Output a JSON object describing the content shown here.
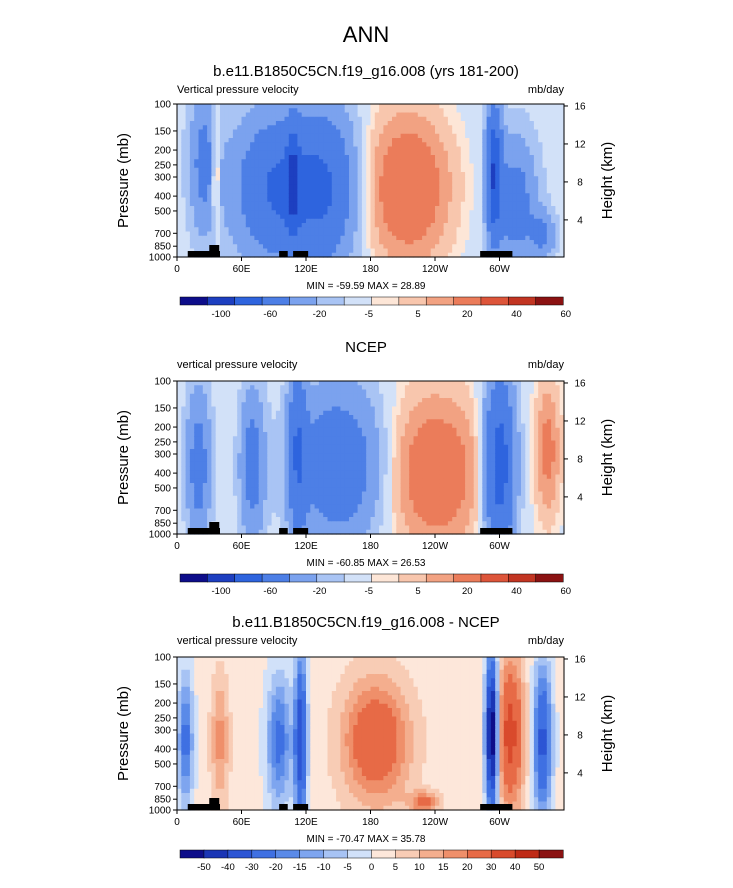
{
  "figure": {
    "title": "ANN"
  },
  "chart_data": [
    {
      "type": "heatmap",
      "title": "b.e11.B1850C5CN.f19_g16.008 (yrs 181-200)",
      "left_label": "Vertical pressure velocity",
      "right_label": "mb/day",
      "ylabel": "Pressure (mb)",
      "right_ylabel": "Height (km)",
      "xtick_labels": [
        "0",
        "60E",
        "120E",
        "180",
        "120W",
        "60W"
      ],
      "ytick_labels": [
        "100",
        "150",
        "200",
        "250",
        "300",
        "400",
        "500",
        "700",
        "850",
        "1000"
      ],
      "height_tick_labels": [
        "16",
        "12",
        "8",
        "4"
      ],
      "stats": "MIN = -59.59  MAX = 28.89",
      "colorbar_labels": [
        "-100",
        "-60",
        "-20",
        "-5",
        "5",
        "20",
        "40",
        "60"
      ],
      "palette": "abs",
      "features": [
        {
          "lon": 25,
          "lev": 0.38,
          "slon": 9,
          "slev": 0.3,
          "amp": -22
        },
        {
          "lon": 36,
          "lev": 0.45,
          "slon": 3,
          "slev": 0.25,
          "amp": 18
        },
        {
          "lon": 95,
          "lev": 0.55,
          "slon": 28,
          "slev": 0.32,
          "amp": -40
        },
        {
          "lon": 140,
          "lev": 0.55,
          "slon": 20,
          "slev": 0.35,
          "amp": -30
        },
        {
          "lon": 108,
          "lev": 0.5,
          "slon": 4,
          "slev": 0.25,
          "amp": -30
        },
        {
          "lon": 215,
          "lev": 0.55,
          "slon": 28,
          "slev": 0.35,
          "amp": 22
        },
        {
          "lon": 295,
          "lev": 0.45,
          "slon": 5,
          "slev": 0.3,
          "amp": -55
        },
        {
          "lon": 315,
          "lev": 0.65,
          "slon": 13,
          "slev": 0.28,
          "amp": -25
        },
        {
          "lon": 340,
          "lev": 0.85,
          "slon": 8,
          "slev": 0.1,
          "amp": -20
        }
      ],
      "background": -3
    },
    {
      "type": "heatmap",
      "title": "NCEP",
      "left_label": "vertical pressure velocity",
      "right_label": "mb/day",
      "ylabel": "Pressure (mb)",
      "right_ylabel": "Height (km)",
      "xtick_labels": [
        "0",
        "60E",
        "120E",
        "180",
        "120W",
        "60W"
      ],
      "ytick_labels": [
        "100",
        "150",
        "200",
        "250",
        "300",
        "400",
        "500",
        "700",
        "850",
        "1000"
      ],
      "height_tick_labels": [
        "16",
        "12",
        "8",
        "4"
      ],
      "stats": "MIN = -60.85  MAX = 26.53",
      "colorbar_labels": [
        "-100",
        "-60",
        "-20",
        "-5",
        "5",
        "20",
        "40",
        "60"
      ],
      "palette": "abs",
      "features": [
        {
          "lon": 20,
          "lev": 0.55,
          "slon": 8,
          "slev": 0.35,
          "amp": -25
        },
        {
          "lon": 70,
          "lev": 0.55,
          "slon": 8,
          "slev": 0.35,
          "amp": -25
        },
        {
          "lon": 150,
          "lev": 0.55,
          "slon": 28,
          "slev": 0.35,
          "amp": -32
        },
        {
          "lon": 112,
          "lev": 0.45,
          "slon": 6,
          "slev": 0.4,
          "amp": -30
        },
        {
          "lon": 240,
          "lev": 0.6,
          "slon": 30,
          "slev": 0.35,
          "amp": 20
        },
        {
          "lon": 300,
          "lev": 0.55,
          "slon": 10,
          "slev": 0.4,
          "amp": -50
        },
        {
          "lon": 345,
          "lev": 0.45,
          "slon": 8,
          "slev": 0.3,
          "amp": 15
        }
      ],
      "background": -2
    },
    {
      "type": "heatmap",
      "title": "b.e11.B1850C5CN.f19_g16.008 - NCEP",
      "left_label": "vertical pressure velocity",
      "right_label": "mb/day",
      "ylabel": "Pressure (mb)",
      "right_ylabel": "Height (km)",
      "xtick_labels": [
        "0",
        "60E",
        "120E",
        "180",
        "120W",
        "60W"
      ],
      "ytick_labels": [
        "100",
        "150",
        "200",
        "250",
        "300",
        "400",
        "500",
        "700",
        "850",
        "1000"
      ],
      "height_tick_labels": [
        "16",
        "12",
        "8",
        "4"
      ],
      "stats": "MIN = -70.47  MAX = 35.78",
      "colorbar_labels": [
        "-50",
        "-40",
        "-30",
        "-20",
        "-15",
        "-10",
        "-5",
        "0",
        "5",
        "10",
        "15",
        "20",
        "30",
        "40",
        "50"
      ],
      "palette": "diff",
      "features": [
        {
          "lon": 8,
          "lev": 0.55,
          "slon": 5,
          "slev": 0.3,
          "amp": -25
        },
        {
          "lon": 40,
          "lev": 0.55,
          "slon": 6,
          "slev": 0.3,
          "amp": 15
        },
        {
          "lon": 95,
          "lev": 0.55,
          "slon": 8,
          "slev": 0.3,
          "amp": -25
        },
        {
          "lon": 115,
          "lev": 0.55,
          "slon": 4,
          "slev": 0.4,
          "amp": -40
        },
        {
          "lon": 185,
          "lev": 0.55,
          "slon": 22,
          "slev": 0.28,
          "amp": 28
        },
        {
          "lon": 230,
          "lev": 0.95,
          "slon": 10,
          "slev": 0.05,
          "amp": 20
        },
        {
          "lon": 293,
          "lev": 0.5,
          "slon": 4,
          "slev": 0.35,
          "amp": -65
        },
        {
          "lon": 310,
          "lev": 0.5,
          "slon": 9,
          "slev": 0.35,
          "amp": 32
        },
        {
          "lon": 340,
          "lev": 0.55,
          "slon": 6,
          "slev": 0.35,
          "amp": -35
        }
      ],
      "background": 2
    }
  ],
  "colors": {
    "abs_palette": [
      "#0d0d8a",
      "#1d3fc0",
      "#2e64de",
      "#4d7fe6",
      "#7ba2ee",
      "#a9c4f4",
      "#d2e1f8",
      "#fde6d7",
      "#f8c6ad",
      "#f2a282",
      "#eb7c5a",
      "#dd553a",
      "#c23522",
      "#8b1212"
    ],
    "diff_palette": [
      "#0d0d8a",
      "#1a35b5",
      "#2c55d4",
      "#3f70e2",
      "#5a8ae8",
      "#7ea5ef",
      "#a7c3f4",
      "#d1e1f9",
      "#fde7da",
      "#f8ccb5",
      "#f4ae8e",
      "#ef8f6a",
      "#e76a46",
      "#d94a2c",
      "#bf2a16",
      "#8b1212"
    ],
    "topography": "#000000"
  }
}
